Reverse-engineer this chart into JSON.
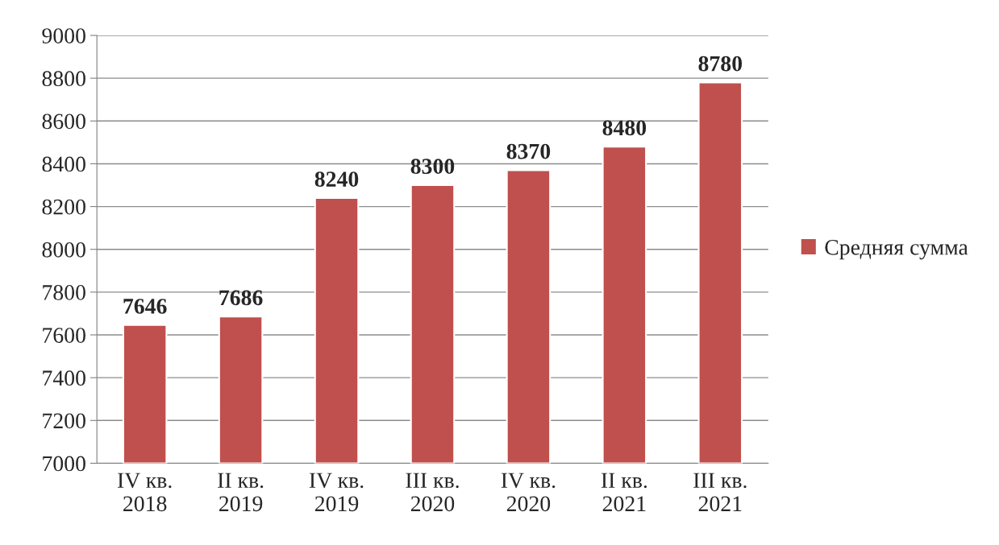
{
  "chart_data": {
    "type": "bar",
    "categories": [
      "IV кв.\n2018",
      "II кв.\n2019",
      "IV кв.\n2019",
      "III кв.\n2020",
      "IV кв.\n2020",
      "II кв.\n2021",
      "III кв.\n2021"
    ],
    "series": [
      {
        "name": "Средняя сумма",
        "color": "#c0504d",
        "values": [
          7646,
          7686,
          8240,
          8300,
          8370,
          8480,
          8780
        ]
      }
    ],
    "ylim": [
      7000,
      9000
    ],
    "yticks": [
      7000,
      7200,
      7400,
      7600,
      7800,
      8000,
      8200,
      8400,
      8600,
      8800,
      9000
    ],
    "grid": "y",
    "legend": "right",
    "data_labels": true
  }
}
